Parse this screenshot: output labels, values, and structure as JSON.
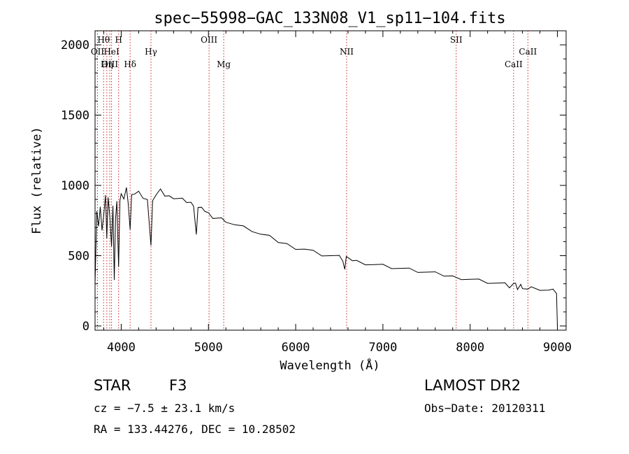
{
  "chart_data": {
    "type": "line",
    "title": "spec−55998−GAC_133N08_V1_sp11−104.fits",
    "xlabel": "Wavelength (Å)",
    "ylabel": "Flux (relative)",
    "xlim": [
      3700,
      9100
    ],
    "ylim": [
      -30,
      2100
    ],
    "x_ticks": [
      4000,
      5000,
      6000,
      7000,
      8000,
      9000
    ],
    "y_ticks": [
      0,
      500,
      1000,
      1500,
      2000
    ],
    "grid": false,
    "line_markers": [
      {
        "name": "Hθ",
        "wavelength": 3798,
        "row": 0
      },
      {
        "name": "H",
        "wavelength": 3970,
        "row": 0
      },
      {
        "name": "OII",
        "wavelength": 3728,
        "row": 1
      },
      {
        "name": "HeI",
        "wavelength": 3889,
        "row": 1
      },
      {
        "name": "Hγ",
        "wavelength": 4341,
        "row": 1
      },
      {
        "name": "OIII",
        "wavelength": 5007,
        "row": 0
      },
      {
        "name": "Mg",
        "wavelength": 5175,
        "row": 2
      },
      {
        "name": "NII",
        "wavelength": 6584,
        "row": 1
      },
      {
        "name": "SII",
        "wavelength": 7840,
        "row": 0
      },
      {
        "name": "CaII",
        "wavelength": 8662,
        "row": 1
      },
      {
        "name": "CaII",
        "wavelength": 8498,
        "row": 2
      },
      {
        "name": "OIII",
        "wavelength": 3869,
        "row": 2
      },
      {
        "name": "Hη",
        "wavelength": 3835,
        "row": 2
      },
      {
        "name": "Hδ",
        "wavelength": 4102,
        "row": 2
      }
    ],
    "series": [
      {
        "x": [
          3700,
          3720,
          3740,
          3760,
          3780,
          3800,
          3820,
          3835,
          3850,
          3870,
          3889,
          3905,
          3920,
          3935,
          3950,
          3970,
          3985,
          4000,
          4030,
          4060,
          4080,
          4102,
          4120,
          4150,
          4200,
          4250,
          4300,
          4341,
          4360,
          4400,
          4450,
          4500,
          4550,
          4600,
          4650,
          4700,
          4750,
          4800,
          4830,
          4861,
          4880,
          4920,
          4960,
          5000,
          5050,
          5100,
          5150,
          5200,
          5300,
          5400,
          5500,
          5600,
          5700,
          5800,
          5900,
          6000,
          6100,
          6200,
          6300,
          6400,
          6500,
          6540,
          6563,
          6580,
          6650,
          6700,
          6800,
          6900,
          7000,
          7100,
          7200,
          7300,
          7400,
          7500,
          7600,
          7700,
          7800,
          7900,
          8000,
          8100,
          8200,
          8300,
          8400,
          8450,
          8498,
          8520,
          8542,
          8580,
          8600,
          8662,
          8700,
          8800,
          8900,
          8950,
          8990,
          9000
        ],
        "y": [
          300,
          820,
          700,
          860,
          680,
          780,
          940,
          620,
          900,
          780,
          560,
          870,
          330,
          750,
          900,
          420,
          880,
          950,
          900,
          970,
          880,
          680,
          950,
          940,
          950,
          920,
          900,
          560,
          900,
          930,
          960,
          930,
          920,
          920,
          910,
          900,
          890,
          880,
          840,
          660,
          840,
          830,
          820,
          800,
          780,
          770,
          760,
          750,
          720,
          700,
          680,
          650,
          630,
          600,
          580,
          560,
          550,
          530,
          510,
          500,
          490,
          470,
          400,
          480,
          470,
          460,
          450,
          440,
          430,
          420,
          410,
          400,
          390,
          380,
          370,
          360,
          350,
          345,
          335,
          325,
          315,
          305,
          295,
          280,
          300,
          290,
          265,
          290,
          280,
          265,
          270,
          265,
          255,
          250,
          240,
          0
        ]
      }
    ]
  },
  "footer": {
    "object_class": "STAR",
    "subclass": "F3",
    "survey": "LAMOST DR2",
    "redshift": "cz = −7.5 ± 23.1 km/s",
    "obs_date": "Obs−Date: 20120311",
    "coords": "RA = 133.44276, DEC =  10.28502"
  },
  "colors": {
    "spectrum": "#000000",
    "marker": "#cc2222",
    "axes": "#000000"
  }
}
